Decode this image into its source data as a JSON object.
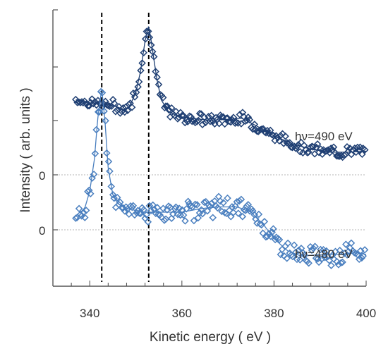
{
  "chart_data": {
    "type": "scatter",
    "title": "",
    "xlabel": "Kinetic energy ( eV )",
    "ylabel": "Intensity ( arb. units )",
    "xlim": [
      332,
      400
    ],
    "x_ticks": [
      "340",
      "360",
      "380",
      "400"
    ],
    "x_tick_values": [
      340,
      360,
      380,
      400
    ],
    "y_ticks_unlabeled": 3,
    "zero_labels": [
      "0",
      "0"
    ],
    "grid": false,
    "marker": "open-diamond",
    "fit_line": true,
    "vertical_lines": [
      342.6,
      352.8
    ],
    "series": [
      {
        "name": "hν=490 eV",
        "color": "#1f3f73",
        "offset_label": "0",
        "x": [
          337,
          338,
          340,
          342,
          344,
          346,
          347.5,
          348.5,
          350,
          351,
          352,
          352.8,
          353.5,
          354.5,
          355.5,
          357,
          359,
          362,
          366,
          370,
          373,
          376,
          380,
          384,
          388,
          392,
          396,
          400
        ],
        "y": [
          0.73,
          0.72,
          0.7,
          0.69,
          0.68,
          0.66,
          0.63,
          0.65,
          0.8,
          1.0,
          1.3,
          1.45,
          1.25,
          0.95,
          0.73,
          0.62,
          0.57,
          0.55,
          0.53,
          0.54,
          0.55,
          0.48,
          0.38,
          0.3,
          0.25,
          0.22,
          0.22,
          0.23
        ]
      },
      {
        "name": "hν=480 eV",
        "color": "#4a7fbf",
        "offset_label": "0",
        "x": [
          337,
          338,
          339,
          340,
          341,
          341.8,
          342.6,
          343.3,
          344,
          345,
          346,
          348,
          352,
          356,
          360,
          364,
          368,
          372,
          375,
          378,
          380,
          383,
          386,
          390,
          394,
          398,
          400
        ],
        "y": [
          0.05,
          0.09,
          0.13,
          0.22,
          0.4,
          0.65,
          0.8,
          0.62,
          0.35,
          0.2,
          0.15,
          0.12,
          0.1,
          0.1,
          0.1,
          0.12,
          0.13,
          0.13,
          0.1,
          0.02,
          -0.05,
          -0.12,
          -0.15,
          -0.14,
          -0.14,
          -0.13,
          -0.14
        ]
      }
    ]
  }
}
